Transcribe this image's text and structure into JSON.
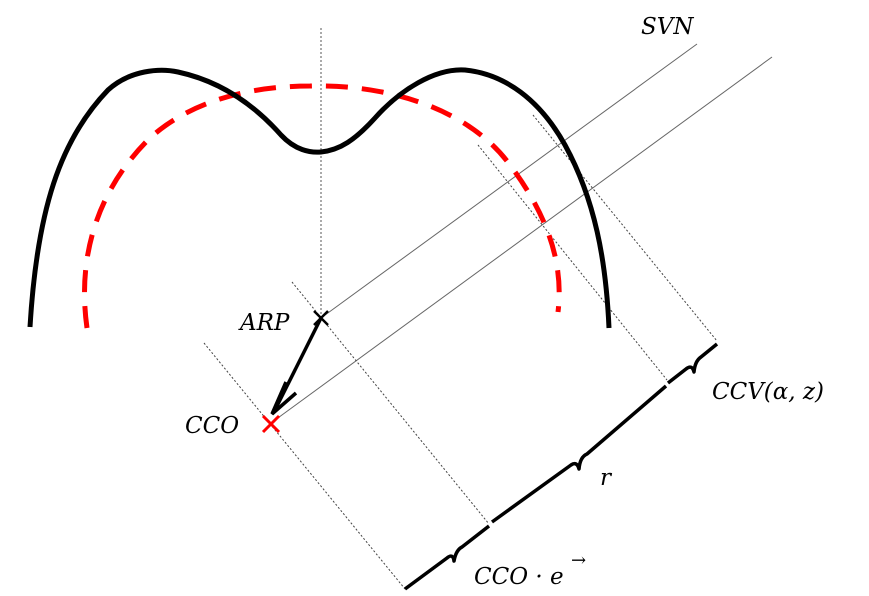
{
  "labels": {
    "svn": "SVN",
    "arp": "ARP",
    "cco": "CCO",
    "ccv": "CCV(α, z)",
    "r": "r",
    "cco_dot_e": "CCO · e"
  },
  "vector_arrow": "→",
  "colors": {
    "profile": "#000000",
    "circle": "#ff0000",
    "cco_marker": "#ff0000",
    "thin_lines": "#555555"
  }
}
